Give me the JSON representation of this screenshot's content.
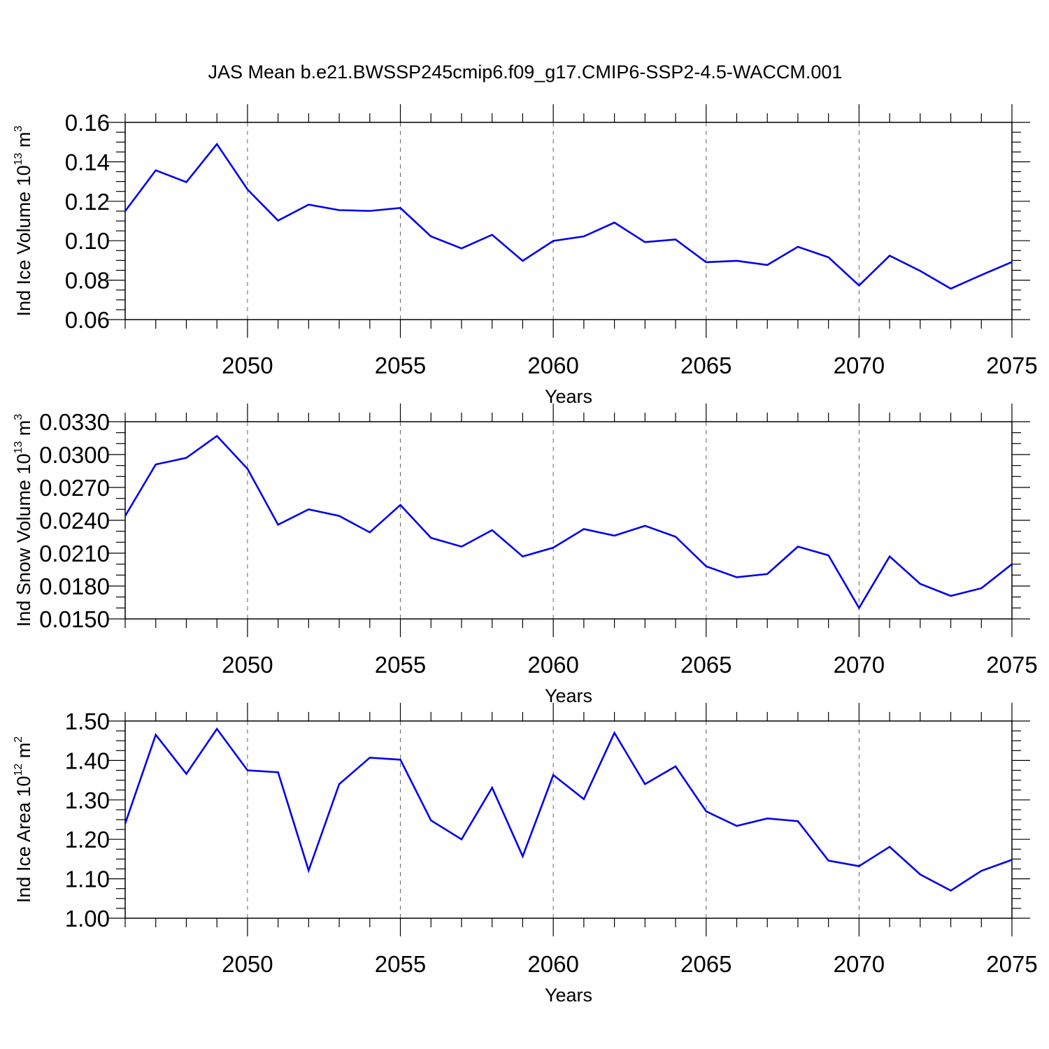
{
  "figure": {
    "title": "JAS Mean b.e21.BWSSP245cmip6.f09_g17.CMIP6-SSP2-4.5-WACCM.001"
  },
  "chart_data": [
    {
      "type": "line",
      "title": "",
      "xlabel": "Years",
      "ylabel": {
        "main": "Ind Ice Volume 10",
        "sup": "13",
        "unit": " m",
        "unit_sup": "3"
      },
      "xlim": [
        2046,
        2075
      ],
      "ylim": [
        0.06,
        0.16
      ],
      "x_ticks": [
        2050,
        2055,
        2060,
        2065,
        2070,
        2075
      ],
      "x_tick_labels": [
        "2050",
        "2055",
        "2060",
        "2065",
        "2070",
        "2075"
      ],
      "y_ticks": [
        0.06,
        0.08,
        0.1,
        0.12,
        0.14,
        0.16
      ],
      "y_tick_labels": [
        "0.06",
        "0.08",
        "0.10",
        "0.12",
        "0.14",
        "0.16"
      ],
      "y_minor_step": 0.005,
      "grid": "vertical-dashed",
      "color": "#0000ee",
      "series": [
        {
          "x": [
            2046,
            2047,
            2048,
            2049,
            2050,
            2051,
            2052,
            2053,
            2054,
            2055,
            2056,
            2057,
            2058,
            2059,
            2060,
            2061,
            2062,
            2063,
            2064,
            2065,
            2066,
            2067,
            2068,
            2069,
            2070,
            2071,
            2072,
            2073,
            2074,
            2075
          ],
          "values": [
            0.115,
            0.1357,
            0.1297,
            0.149,
            0.126,
            0.1102,
            0.1183,
            0.1155,
            0.1151,
            0.1166,
            0.1022,
            0.0961,
            0.103,
            0.0898,
            0.0999,
            0.1022,
            0.1092,
            0.0993,
            0.1006,
            0.0891,
            0.0898,
            0.0877,
            0.0969,
            0.0916,
            0.0773,
            0.0924,
            0.0847,
            0.0757,
            0.0826,
            0.0892
          ]
        }
      ]
    },
    {
      "type": "line",
      "title": "",
      "xlabel": "Years",
      "ylabel": {
        "main": "Ind Snow Volume 10",
        "sup": "13",
        "unit": " m",
        "unit_sup": "3"
      },
      "xlim": [
        2046,
        2075
      ],
      "ylim": [
        0.015,
        0.033
      ],
      "x_ticks": [
        2050,
        2055,
        2060,
        2065,
        2070,
        2075
      ],
      "x_tick_labels": [
        "2050",
        "2055",
        "2060",
        "2065",
        "2070",
        "2075"
      ],
      "y_ticks": [
        0.015,
        0.018,
        0.021,
        0.024,
        0.027,
        0.03,
        0.033
      ],
      "y_tick_labels": [
        "0.0150",
        "0.0180",
        "0.0210",
        "0.0240",
        "0.0270",
        "0.0300",
        "0.0330"
      ],
      "y_minor_step": 0.001,
      "grid": "vertical-dashed",
      "color": "#0000ee",
      "series": [
        {
          "x": [
            2046,
            2047,
            2048,
            2049,
            2050,
            2051,
            2052,
            2053,
            2054,
            2055,
            2056,
            2057,
            2058,
            2059,
            2060,
            2061,
            2062,
            2063,
            2064,
            2065,
            2066,
            2067,
            2068,
            2069,
            2070,
            2071,
            2072,
            2073,
            2074,
            2075
          ],
          "values": [
            0.0244,
            0.0291,
            0.0297,
            0.0317,
            0.0287,
            0.0236,
            0.025,
            0.0244,
            0.0229,
            0.0254,
            0.0224,
            0.0216,
            0.0231,
            0.0207,
            0.0215,
            0.0232,
            0.0226,
            0.0235,
            0.0225,
            0.0198,
            0.0188,
            0.0191,
            0.0216,
            0.0208,
            0.016,
            0.0207,
            0.0182,
            0.0171,
            0.0178,
            0.02
          ]
        }
      ]
    },
    {
      "type": "line",
      "title": "",
      "xlabel": "Years",
      "ylabel": {
        "main": "Ind Ice Area 10",
        "sup": "12",
        "unit": " m",
        "unit_sup": "2"
      },
      "xlim": [
        2046,
        2075
      ],
      "ylim": [
        1.0,
        1.5
      ],
      "x_ticks": [
        2050,
        2055,
        2060,
        2065,
        2070,
        2075
      ],
      "x_tick_labels": [
        "2050",
        "2055",
        "2060",
        "2065",
        "2070",
        "2075"
      ],
      "y_ticks": [
        1.0,
        1.1,
        1.2,
        1.3,
        1.4,
        1.5
      ],
      "y_tick_labels": [
        "1.00",
        "1.10",
        "1.20",
        "1.30",
        "1.40",
        "1.50"
      ],
      "y_minor_step": 0.025,
      "grid": "vertical-dashed",
      "color": "#0000ee",
      "series": [
        {
          "x": [
            2046,
            2047,
            2048,
            2049,
            2050,
            2051,
            2052,
            2053,
            2054,
            2055,
            2056,
            2057,
            2058,
            2059,
            2060,
            2061,
            2062,
            2063,
            2064,
            2065,
            2066,
            2067,
            2068,
            2069,
            2070,
            2071,
            2072,
            2073,
            2074,
            2075
          ],
          "values": [
            1.24,
            1.465,
            1.366,
            1.48,
            1.375,
            1.37,
            1.121,
            1.34,
            1.407,
            1.402,
            1.248,
            1.2,
            1.331,
            1.157,
            1.363,
            1.302,
            1.47,
            1.34,
            1.385,
            1.271,
            1.234,
            1.253,
            1.246,
            1.146,
            1.132,
            1.181,
            1.111,
            1.07,
            1.12,
            1.148
          ]
        }
      ]
    }
  ]
}
